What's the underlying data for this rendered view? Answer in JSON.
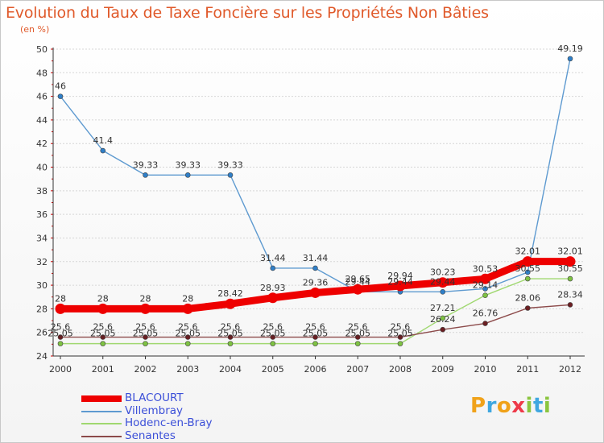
{
  "header": {
    "title": "Evolution du Taux de Taxe Foncière sur les Propriétés Non Bâties",
    "subtitle": "(en %)"
  },
  "logo": {
    "text": "Proxiti",
    "letters": [
      {
        "ch": "P",
        "color": "#f0a21a"
      },
      {
        "ch": "r",
        "color": "#3fa7e0"
      },
      {
        "ch": "o",
        "color": "#f0a21a"
      },
      {
        "ch": "x",
        "color": "#ee3a4a"
      },
      {
        "ch": "i",
        "color": "#8bc53f"
      },
      {
        "ch": "t",
        "color": "#3fa7e0"
      },
      {
        "ch": "i",
        "color": "#8bc53f"
      }
    ]
  },
  "chart_data": {
    "type": "line",
    "title": "Evolution du Taux de Taxe Foncière sur les Propriétés Non Bâties",
    "ylabel": "(en %)",
    "xlabel": "",
    "x": [
      "2000",
      "2001",
      "2002",
      "2003",
      "2004",
      "2005",
      "2006",
      "2007",
      "2008",
      "2009",
      "2010",
      "2011",
      "2012"
    ],
    "ylim": [
      24,
      50
    ],
    "yticks": [
      "24",
      "26",
      "28",
      "30",
      "32",
      "34",
      "36",
      "38",
      "40",
      "42",
      "44",
      "46",
      "48",
      "50"
    ],
    "legend_position": "bottom-left",
    "series": [
      {
        "name": "Villembray",
        "color": "#5e9ad0",
        "marker": "#2f7fc8",
        "values": [
          46,
          41.4,
          39.33,
          39.33,
          39.33,
          31.44,
          31.44,
          29.44,
          29.44,
          29.44,
          29.7,
          31.1,
          49.19
        ],
        "labels": [
          "46",
          "41.4",
          "39.33",
          "39.33",
          "39.33",
          "31.44",
          "31.44",
          "29.44",
          "29.44",
          "29.44",
          "",
          "",
          "49.19"
        ]
      },
      {
        "name": "Hodenc-en-Bray",
        "color": "#a0d870",
        "marker": "#7ec242",
        "values": [
          25.05,
          25.05,
          25.05,
          25.05,
          25.05,
          25.05,
          25.05,
          25.05,
          25.05,
          27.21,
          29.14,
          30.55,
          30.55
        ],
        "labels": [
          "25.05",
          "25.05",
          "25.05",
          "25.05",
          "25.05",
          "25.05",
          "25.05",
          "25.05",
          "25.05",
          "27.21",
          "29.14",
          "30.55",
          "30.55"
        ]
      },
      {
        "name": "Senantes",
        "color": "#8c4a4a",
        "marker": "#6b1e22",
        "values": [
          25.6,
          25.6,
          25.6,
          25.6,
          25.6,
          25.6,
          25.6,
          25.6,
          25.6,
          26.24,
          26.76,
          28.06,
          28.34
        ],
        "labels": [
          "25.6",
          "25.6",
          "25.6",
          "25.6",
          "25.6",
          "25.6",
          "25.6",
          "25.6",
          "25.6",
          "26.24",
          "26.76",
          "28.06",
          "28.34"
        ]
      },
      {
        "name": "BLACOURT",
        "color": "#ee0000",
        "marker": "#ee0000",
        "values": [
          28,
          28,
          28,
          28,
          28.42,
          28.93,
          29.36,
          29.65,
          29.94,
          30.23,
          30.53,
          32.01,
          32.01
        ],
        "labels": [
          "28",
          "28",
          "28",
          "28",
          "28.42",
          "28.93",
          "29.36",
          "29.65",
          "29.94",
          "30.23",
          "30.53",
          "32.01",
          "32.01"
        ]
      }
    ],
    "legend": [
      {
        "name": "BLACOURT",
        "color": "#ee0000",
        "text_color": "#3b4fd8"
      },
      {
        "name": "Villembray",
        "color": "#5e9ad0",
        "text_color": "#3b4fd8"
      },
      {
        "name": "Hodenc-en-Bray",
        "color": "#a0d870",
        "text_color": "#3b4fd8"
      },
      {
        "name": "Senantes",
        "color": "#8c4a4a",
        "text_color": "#3b4fd8"
      }
    ]
  }
}
